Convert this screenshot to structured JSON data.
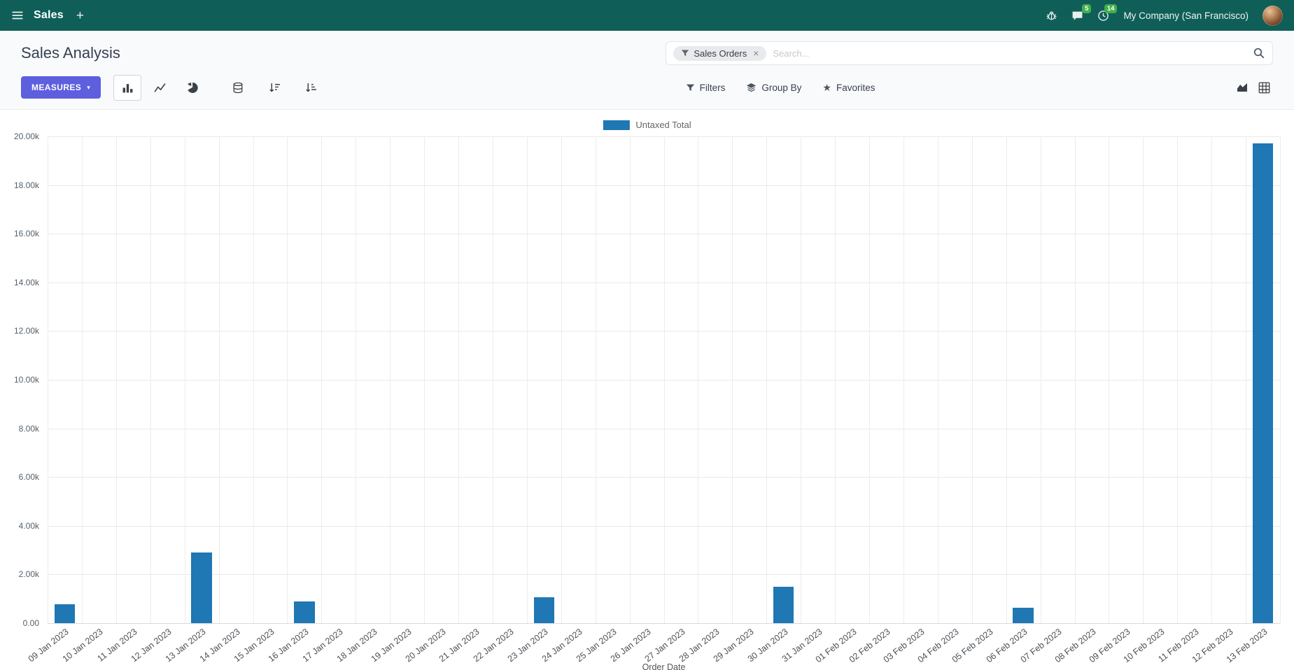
{
  "colors": {
    "navbar_bg": "#0f5f58",
    "primary": "#5d5fde",
    "bar": "#1f77b4",
    "badge": "#41b049"
  },
  "icons": {
    "plus": "+",
    "caret_down": "▾",
    "close": "×",
    "star": "★"
  },
  "navbar": {
    "app_name": "Sales",
    "chat_badge": "5",
    "clock_badge": "14",
    "company": "My Company (San Francisco)"
  },
  "control_panel": {
    "title": "Sales Analysis",
    "search": {
      "facet_label": "Sales Orders",
      "placeholder": "Search..."
    },
    "measures_label": "MEASURES",
    "filters_label": "Filters",
    "group_by_label": "Group By",
    "favorites_label": "Favorites"
  },
  "chart_data": {
    "type": "bar",
    "title": "",
    "legend": [
      {
        "label": "Untaxed Total",
        "color": "#1f77b4"
      }
    ],
    "xlabel": "Order Date",
    "ylabel": "",
    "ylim": [
      0,
      20000
    ],
    "grid": true,
    "legend_position": "top-center",
    "y_ticks": [
      "0.00",
      "2.00k",
      "4.00k",
      "6.00k",
      "8.00k",
      "10.00k",
      "12.00k",
      "14.00k",
      "16.00k",
      "18.00k",
      "20.00k"
    ],
    "categories": [
      "09 Jan 2023",
      "10 Jan 2023",
      "11 Jan 2023",
      "12 Jan 2023",
      "13 Jan 2023",
      "14 Jan 2023",
      "15 Jan 2023",
      "16 Jan 2023",
      "17 Jan 2023",
      "18 Jan 2023",
      "19 Jan 2023",
      "20 Jan 2023",
      "21 Jan 2023",
      "22 Jan 2023",
      "23 Jan 2023",
      "24 Jan 2023",
      "25 Jan 2023",
      "26 Jan 2023",
      "27 Jan 2023",
      "28 Jan 2023",
      "29 Jan 2023",
      "30 Jan 2023",
      "31 Jan 2023",
      "01 Feb 2023",
      "02 Feb 2023",
      "03 Feb 2023",
      "04 Feb 2023",
      "05 Feb 2023",
      "06 Feb 2023",
      "07 Feb 2023",
      "08 Feb 2023",
      "09 Feb 2023",
      "10 Feb 2023",
      "11 Feb 2023",
      "12 Feb 2023",
      "13 Feb 2023"
    ],
    "values": [
      780,
      0,
      0,
      0,
      2900,
      0,
      0,
      900,
      0,
      0,
      0,
      0,
      0,
      0,
      1050,
      0,
      0,
      0,
      0,
      0,
      0,
      1500,
      0,
      0,
      0,
      0,
      0,
      0,
      630,
      0,
      0,
      0,
      0,
      0,
      0,
      19700
    ]
  }
}
